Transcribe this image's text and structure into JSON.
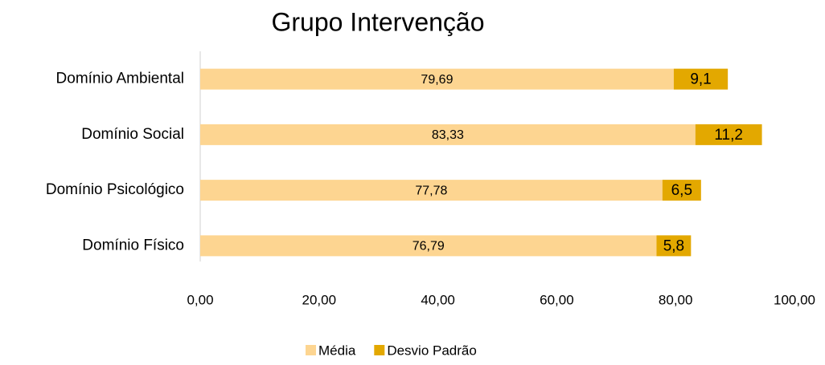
{
  "chart_data": {
    "type": "stacked_barh",
    "title": "Grupo Intervenção",
    "categories": [
      "Domínio Ambiental",
      "Domínio Social",
      "Domínio Psicológico",
      "Domínio Físico"
    ],
    "series": [
      {
        "name": "Média",
        "color": "#fdd591",
        "values": [
          79.69,
          83.33,
          77.78,
          76.79
        ],
        "value_labels": [
          "79,69",
          "83,33",
          "77,78",
          "76,79"
        ]
      },
      {
        "name": "Desvio Padrão",
        "color": "#e3a800",
        "values": [
          9.1,
          11.2,
          6.5,
          5.8
        ],
        "value_labels": [
          "9,1",
          "11,2",
          "6,5",
          "5,8"
        ]
      }
    ],
    "xlim": [
      0,
      100
    ],
    "xticks": [
      {
        "value": 0,
        "label": "0,00"
      },
      {
        "value": 20,
        "label": "20,00"
      },
      {
        "value": 40,
        "label": "40,00"
      },
      {
        "value": 60,
        "label": "60,00"
      },
      {
        "value": 80,
        "label": "80,00"
      },
      {
        "value": 100,
        "label": "100,00"
      }
    ],
    "legend": "bottom"
  }
}
